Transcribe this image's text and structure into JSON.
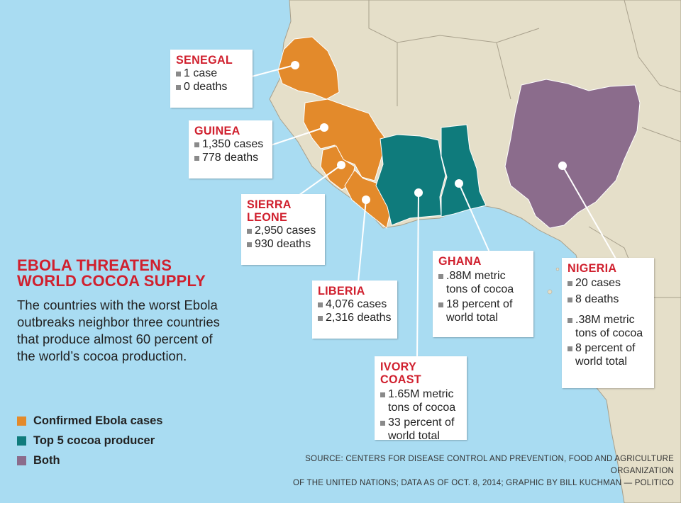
{
  "colors": {
    "ocean": "#a9dcf2",
    "land": "#e5dfc9",
    "border": "#a8a08c",
    "ebola": "#e38a2b",
    "cocoa": "#0f7b7c",
    "both": "#8b6c8c",
    "accent_red": "#d0202e"
  },
  "title": {
    "line1": "EBOLA THREATENS",
    "line2": "WORLD COCOA SUPPLY"
  },
  "subtitle": "The countries with the worst Ebola outbreaks neighbor three countries that produce almost 60 percent of the world’s cocoa production.",
  "legend": [
    {
      "label": "Confirmed Ebola cases",
      "color": "#e38a2b"
    },
    {
      "label": "Top 5 cocoa producer",
      "color": "#0f7b7c"
    },
    {
      "label": "Both",
      "color": "#8b6c8c"
    }
  ],
  "countries": {
    "senegal": {
      "name": "SENEGAL",
      "lines": [
        "1 case",
        "0 deaths"
      ]
    },
    "guinea": {
      "name": "GUINEA",
      "lines": [
        "1,350 cases",
        "778 deaths"
      ]
    },
    "sierra_leone": {
      "name": "SIERRA\nLEONE",
      "lines": [
        "2,950 cases",
        "930 deaths"
      ]
    },
    "liberia": {
      "name": "LIBERIA",
      "lines": [
        "4,076 cases",
        "2,316 deaths"
      ]
    },
    "ivory_coast": {
      "name": "IVORY COAST",
      "lines": [
        "1.65M metric\ntons of cocoa",
        "33 percent of\nworld total"
      ]
    },
    "ghana": {
      "name": "GHANA",
      "lines": [
        ".88M metric\ntons of cocoa",
        "18 percent of\nworld total"
      ]
    },
    "nigeria": {
      "name": "NIGERIA",
      "lines": [
        "20 cases",
        "8 deaths",
        ".38M metric\ntons of cocoa",
        "8 percent of\nworld total"
      ]
    }
  },
  "source": {
    "line1": "SOURCE: CENTERS FOR DISEASE CONTROL AND PREVENTION, FOOD AND AGRICULTURE ORGANIZATION",
    "line2": "OF THE UNITED NATIONS; DATA AS OF OCT. 8, 2014; GRAPHIC BY BILL KUCHMAN — POLITICO"
  },
  "icons": {
    "bullet": "square-bullet-icon",
    "marker": "white-dot-marker-icon"
  }
}
